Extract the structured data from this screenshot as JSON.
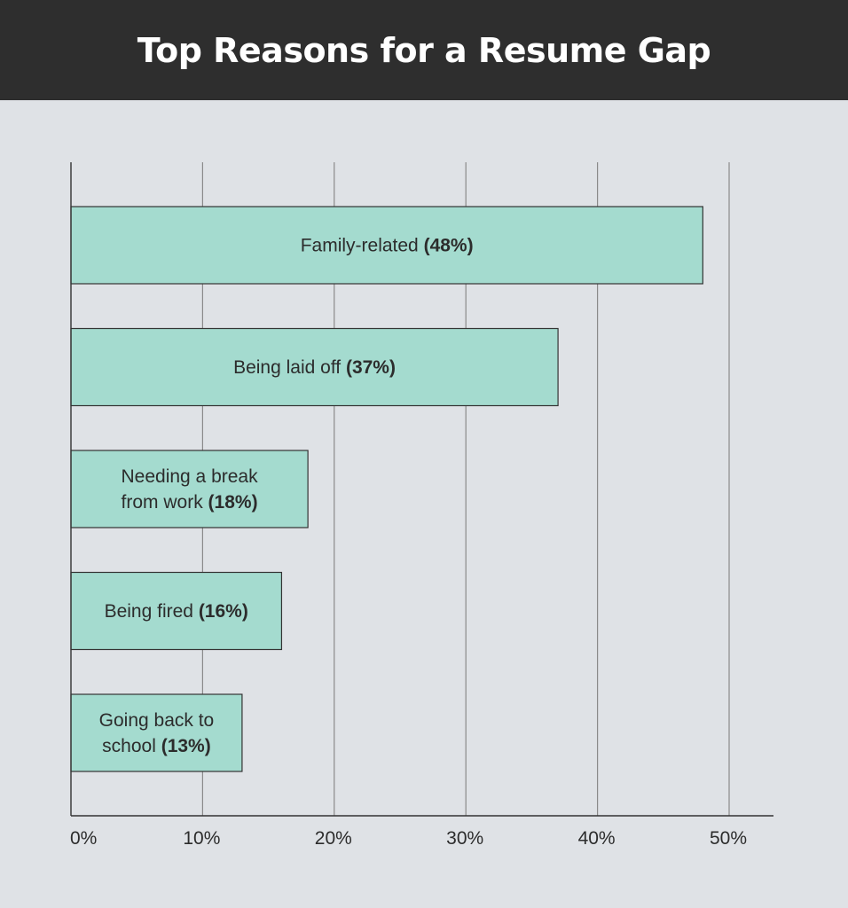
{
  "header": {
    "title": "Top Reasons for a Resume Gap"
  },
  "chart_data": {
    "type": "bar",
    "orientation": "horizontal",
    "title": "Top Reasons for a Resume Gap",
    "xlabel": "",
    "ylabel": "",
    "xlim": [
      0,
      50
    ],
    "x_ticks": [
      0,
      10,
      20,
      30,
      40,
      50
    ],
    "x_tick_labels": [
      "0%",
      "10%",
      "20%",
      "30%",
      "40%",
      "50%"
    ],
    "grid": "vertical",
    "categories": [
      [
        "Family-related"
      ],
      [
        "Being laid off"
      ],
      [
        "Needing a break",
        "from work"
      ],
      [
        "Being fired"
      ],
      [
        "Going back to",
        "school"
      ]
    ],
    "values": [
      48,
      37,
      18,
      16,
      13
    ],
    "value_labels": [
      "(48%)",
      "(37%)",
      "(18%)",
      "(16%)",
      "(13%)"
    ],
    "bar_color": "#a4dbcf",
    "background_color": "#dfe2e6",
    "header_color": "#2e2e2e"
  }
}
